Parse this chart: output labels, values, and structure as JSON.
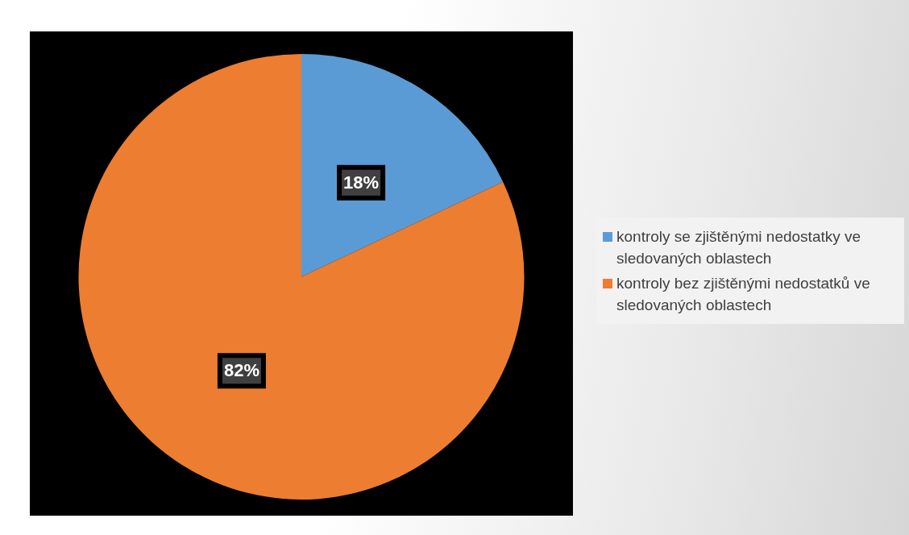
{
  "chart_data": {
    "type": "pie",
    "categories": [
      "kontroly se zjištěnými nedostatky ve sledovaných oblastech",
      "kontroly bez zjištěnými nedostatků ve sledovaných oblastech"
    ],
    "values": [
      18,
      82
    ],
    "colors": [
      "#5b9bd5",
      "#ed7d31"
    ],
    "value_labels": [
      "18%",
      "82%"
    ],
    "legend": "right"
  }
}
